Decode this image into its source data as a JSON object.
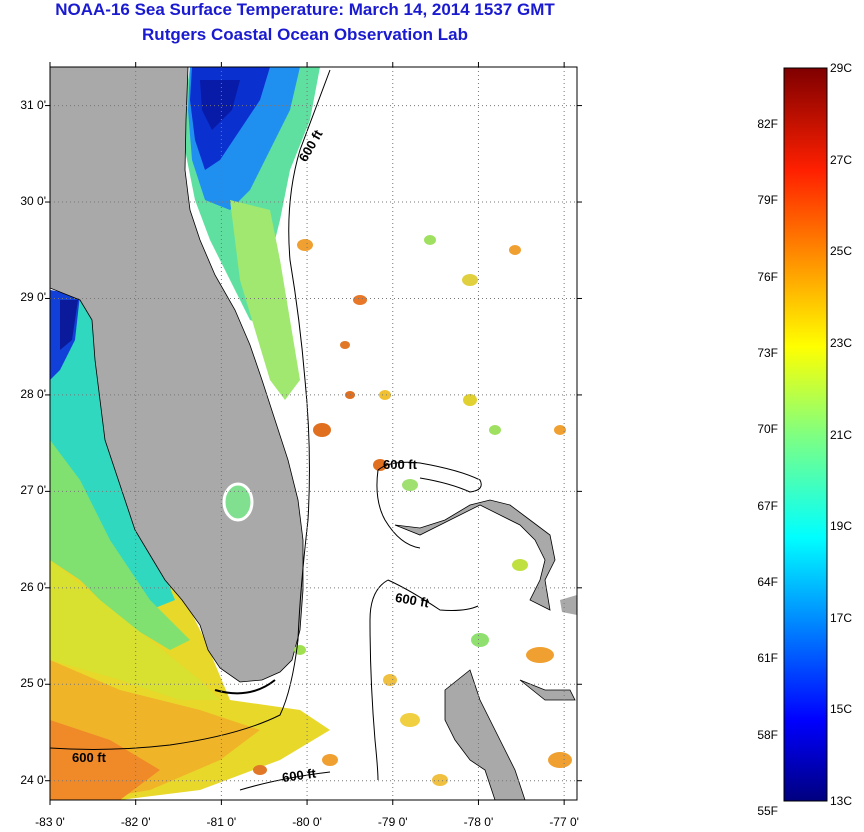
{
  "header": {
    "title": "NOAA-16 Sea Surface Temperature:  March 14, 2014 1537 GMT",
    "subtitle": "Rutgers Coastal Ocean Observation Lab"
  },
  "map": {
    "lat_range": [
      23.8,
      31.4
    ],
    "lon_range": [
      -83.0,
      -76.85
    ],
    "lat_ticks": [
      {
        "value": 31,
        "label": "31 0'"
      },
      {
        "value": 30,
        "label": "30 0'"
      },
      {
        "value": 29,
        "label": "29 0'"
      },
      {
        "value": 28,
        "label": "28 0'"
      },
      {
        "value": 27,
        "label": "27 0'"
      },
      {
        "value": 26,
        "label": "26 0'"
      },
      {
        "value": 25,
        "label": "25 0'"
      },
      {
        "value": 24,
        "label": "24 0'"
      }
    ],
    "lon_ticks": [
      {
        "value": -83,
        "label": "-83 0'"
      },
      {
        "value": -82,
        "label": "-82 0'"
      },
      {
        "value": -81,
        "label": "-81 0'"
      },
      {
        "value": -80,
        "label": "-80 0'"
      },
      {
        "value": -79,
        "label": "-79 0'"
      },
      {
        "value": -78,
        "label": "-78 0'"
      },
      {
        "value": -77,
        "label": "-77 0'"
      }
    ],
    "contour_label": "600 ft",
    "land_color": "#a9a9a9"
  },
  "colorbar": {
    "range_c": [
      13,
      29
    ],
    "celsius_labels": [
      "29C",
      "27C",
      "25C",
      "23C",
      "21C",
      "19C",
      "17C",
      "15C",
      "13C"
    ],
    "fahrenheit_labels": [
      "82F",
      "79F",
      "76F",
      "73F",
      "70F",
      "67F",
      "64F",
      "61F",
      "58F",
      "55F"
    ],
    "colormap": "jet"
  }
}
